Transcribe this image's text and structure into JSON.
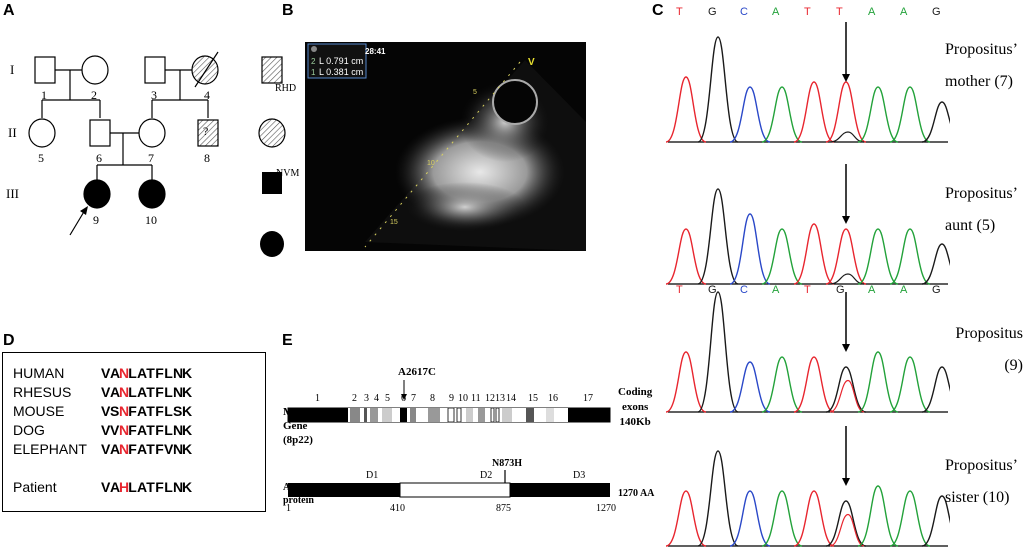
{
  "panels": {
    "A": "A",
    "B": "B",
    "C": "C",
    "D": "D",
    "E": "E"
  },
  "pedigree": {
    "generations": [
      "I",
      "II",
      "III"
    ],
    "ids": [
      "1",
      "2",
      "3",
      "4",
      "5",
      "6",
      "7",
      "8",
      "9",
      "10"
    ],
    "question_mark": "?",
    "legend": [
      "RHD",
      "NVM"
    ]
  },
  "echo": {
    "time": "28:41",
    "measure1": "L 0.791 cm",
    "measure2": "L 0.381 cm",
    "m1_index": "2",
    "m2_index": "1",
    "probe_marker": "V",
    "depth_labels": [
      "5",
      "10",
      "15"
    ]
  },
  "chromatograms": {
    "sequence_wt": [
      "T",
      "G",
      "C",
      "A",
      "T",
      "T",
      "A",
      "A",
      "G"
    ],
    "sequence_mut": [
      "T",
      "G",
      "C",
      "A",
      "T",
      "G",
      "A",
      "A",
      "G"
    ],
    "base_colors": {
      "T": "#e8262f",
      "G": "#1a1a1a",
      "C": "#2a48c8",
      "A": "#23a23a"
    },
    "labels": [
      {
        "line1": "Propositus’",
        "line2": "mother (7)"
      },
      {
        "line1": "Propositus’",
        "line2": "aunt (5)"
      },
      {
        "line1": "Propositus",
        "line2": "(9)"
      },
      {
        "line1": "Propositus’",
        "line2": "sister (10)"
      }
    ]
  },
  "alignment": {
    "rows": [
      {
        "species": "HUMAN",
        "seq": "VANLATFLNK",
        "highlight": 2
      },
      {
        "species": "RHESUS",
        "seq": "VANLATFLNK",
        "highlight": 2
      },
      {
        "species": "MOUSE",
        "seq": "VSNFATFLSK",
        "highlight": 2
      },
      {
        "species": "DOG",
        "seq": "VVNFATFLNK",
        "highlight": 2
      },
      {
        "species": "ELEPHANT",
        "seq": "VANFATFVNK",
        "highlight": 2
      },
      {
        "species": "Patient",
        "seq": "VAHLATFLNK",
        "highlight": 2
      }
    ],
    "highlight_color": "#e8262f"
  },
  "gene": {
    "mutation_label": "A2617C",
    "gene_name": [
      "MTUS1",
      "Gene",
      "(8p22)"
    ],
    "right_label": [
      "Coding",
      "exons",
      "140Kb"
    ],
    "exon_numbers": [
      "1",
      "2",
      "3",
      "4",
      "5",
      "6",
      "7",
      "8",
      "9",
      "10",
      "11",
      "1213",
      "14",
      "15",
      "16",
      "17"
    ],
    "protein_name": [
      "ATIP3",
      "protein"
    ],
    "protein_mutation": "N873H",
    "domains": [
      "D1",
      "D2",
      "D3"
    ],
    "protein_length": "1270 AA",
    "ticks": [
      "1",
      "410",
      "875",
      "1270"
    ]
  }
}
